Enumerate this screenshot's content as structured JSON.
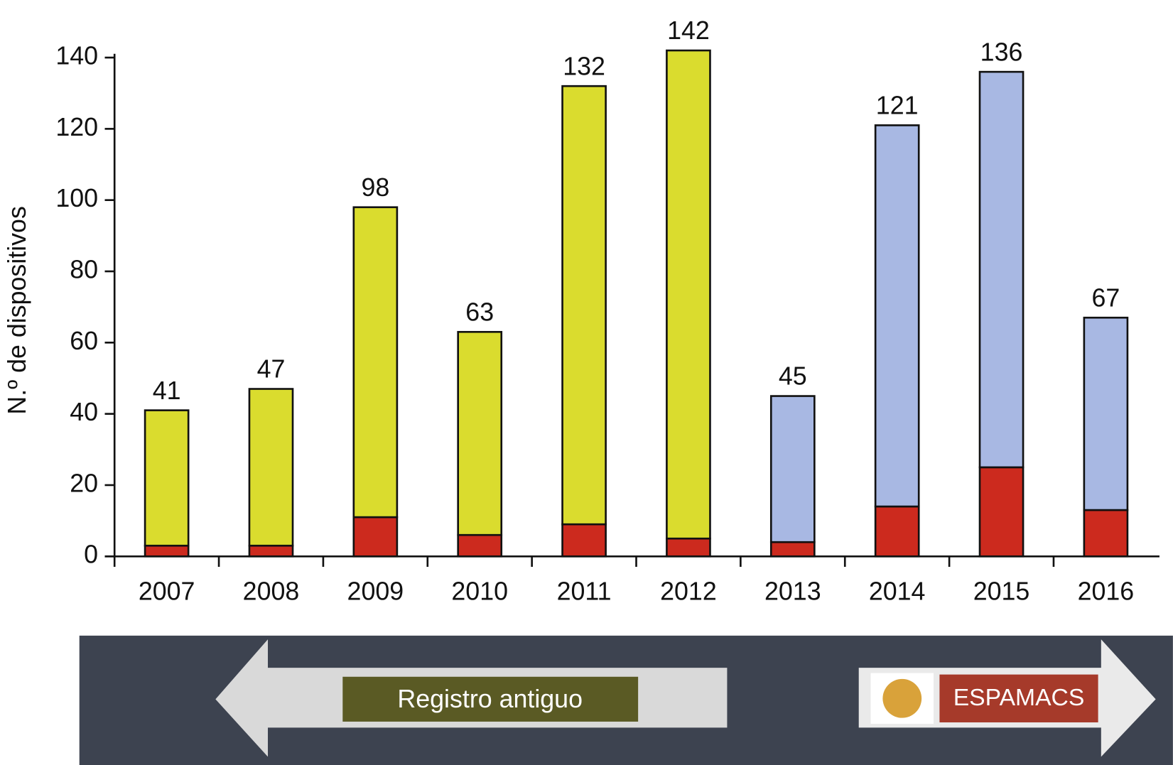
{
  "chart_data": {
    "type": "stacked-bar",
    "y_label": "N.º de dispositivos",
    "categories": [
      "2007",
      "2008",
      "2009",
      "2010",
      "2011",
      "2012",
      "2013",
      "2014",
      "2015",
      "2016"
    ],
    "series": [
      {
        "color": "#cc2a1e",
        "values": [
          3,
          3,
          11,
          6,
          9,
          5,
          4,
          14,
          25,
          13
        ]
      },
      {
        "name": "Registro antiguo",
        "color": "#dadc2e",
        "values": [
          38,
          44,
          87,
          57,
          123,
          137,
          null,
          null,
          null,
          null
        ]
      },
      {
        "name": "ESPAMACS",
        "color": "#a8b8e3",
        "values": [
          null,
          null,
          null,
          null,
          null,
          null,
          41,
          107,
          111,
          54
        ]
      }
    ],
    "totals": [
      41,
      47,
      98,
      63,
      132,
      142,
      45,
      121,
      136,
      67
    ],
    "ylim": [
      0,
      140
    ],
    "yticks": [
      0,
      20,
      40,
      60,
      80,
      100,
      120,
      140
    ]
  }
}
